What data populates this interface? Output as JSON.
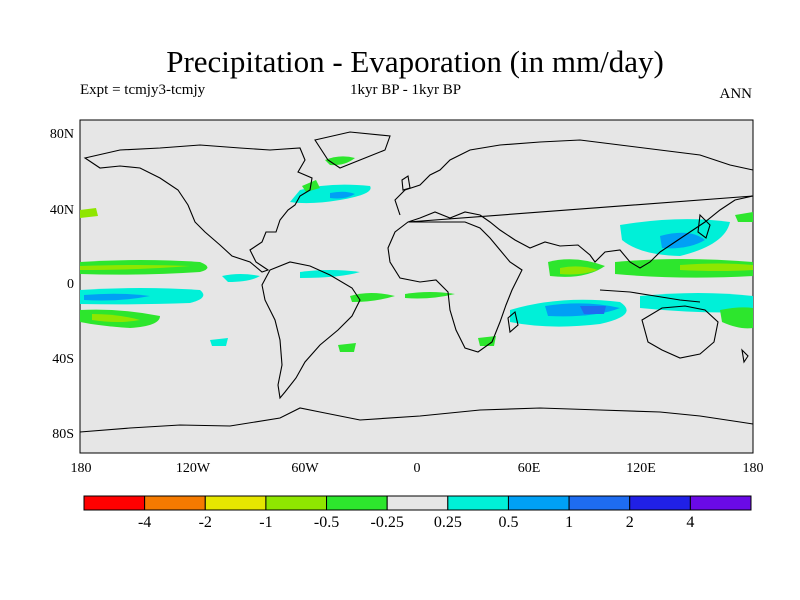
{
  "title": "Precipitation - Evaporation (in mm/day)",
  "subtitle_left": "Expt = tcmjy3-tcmjy",
  "subtitle_center": "1kyr BP - 1kyr BP",
  "subtitle_right": "ANN",
  "map": {
    "projection": "cylindrical equidistant",
    "lon_range": [
      -180,
      180
    ],
    "lat_range": [
      -90,
      90
    ],
    "background_color": "#e6e6e6"
  },
  "axes": {
    "lat_ticks": [
      "80N",
      "40N",
      "0",
      "40S",
      "80S"
    ],
    "lon_ticks": [
      "180",
      "120W",
      "60W",
      "0",
      "60E",
      "120E",
      "180"
    ]
  },
  "colorbar": {
    "colors": [
      "#ff0000",
      "#f57a00",
      "#e6e600",
      "#8fe600",
      "#2de62d",
      "#e6e6e6",
      "#00f0d8",
      "#00a0f5",
      "#1e6cf0",
      "#2020e6",
      "#6a0ae6"
    ],
    "labels": [
      "-4",
      "-2",
      "-1",
      "-0.5",
      "-0.25",
      "0.25",
      "0.5",
      "1",
      "2",
      "4"
    ]
  }
}
